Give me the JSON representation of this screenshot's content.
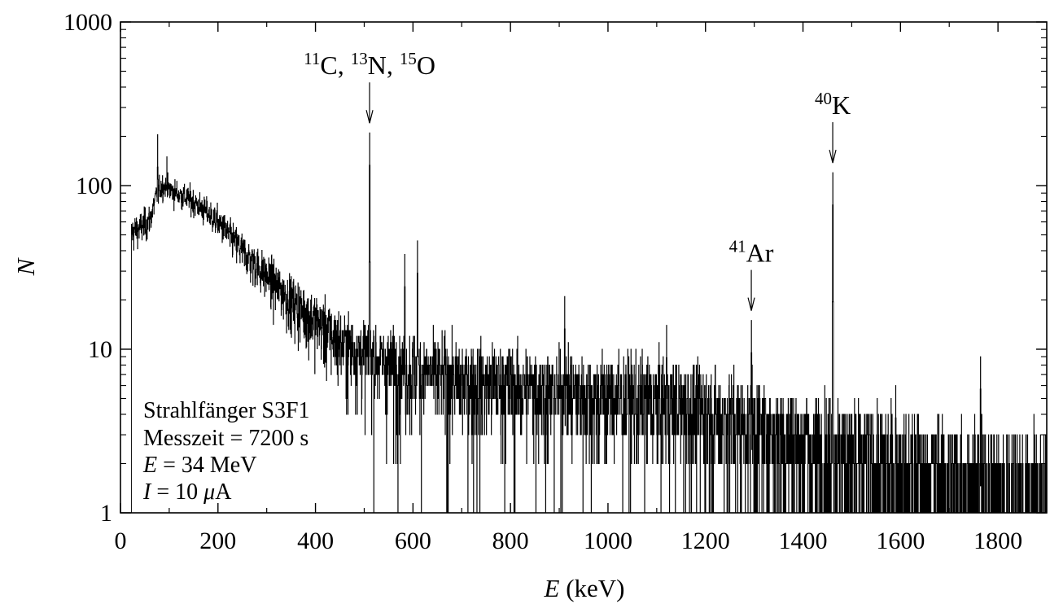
{
  "chart_data": {
    "type": "line",
    "xlabel_var": "E",
    "xlabel_unit": " (keV)",
    "ylabel": "N",
    "xlim": [
      0,
      1900
    ],
    "ylim": [
      1,
      1000
    ],
    "yscale": "log",
    "x_ticks": [
      "0",
      "200",
      "400",
      "600",
      "800",
      "1000",
      "1200",
      "1400",
      "1600",
      "1800"
    ],
    "y_ticks": [
      "1",
      "10",
      "100",
      "1000"
    ],
    "grid": false,
    "info_box": {
      "position": "bottom-left",
      "line1": "Strahlfänger S3F1",
      "line2": "Messzeit = 7200 s",
      "line3_var": "E",
      "line3_rest": " = 34 MeV",
      "line4_var": "I",
      "line4_rest": " = 10 ",
      "line4_mu": "μ",
      "line4_unit": "A"
    },
    "peak_annotations": [
      {
        "energy": 511,
        "parts": [
          {
            "sup": "11"
          },
          {
            "t": "C, "
          },
          {
            "sup": "13"
          },
          {
            "t": "N, "
          },
          {
            "sup": "15"
          },
          {
            "t": "O"
          }
        ]
      },
      {
        "energy": 1294,
        "parts": [
          {
            "sup": "41"
          },
          {
            "t": "Ar"
          }
        ]
      },
      {
        "energy": 1461,
        "parts": [
          {
            "sup": "40"
          },
          {
            "t": "K"
          }
        ]
      }
    ],
    "series": [
      {
        "trend": [
          [
            22,
            52
          ],
          [
            40,
            55
          ],
          [
            60,
            62
          ],
          [
            75,
            90
          ],
          [
            85,
            100
          ],
          [
            100,
            95
          ],
          [
            150,
            80
          ],
          [
            200,
            60
          ],
          [
            250,
            40
          ],
          [
            300,
            28
          ],
          [
            350,
            20
          ],
          [
            400,
            15
          ],
          [
            450,
            11
          ],
          [
            500,
            9.5
          ],
          [
            550,
            8
          ],
          [
            600,
            7.5
          ],
          [
            700,
            6.5
          ],
          [
            800,
            6
          ],
          [
            900,
            5.6
          ],
          [
            1000,
            5.2
          ],
          [
            1100,
            4.8
          ],
          [
            1200,
            4.2
          ],
          [
            1300,
            3.3
          ],
          [
            1400,
            2.6
          ],
          [
            1500,
            2.1
          ],
          [
            1600,
            1.8
          ],
          [
            1700,
            1.5
          ],
          [
            1800,
            1.3
          ],
          [
            1900,
            1.2
          ]
        ],
        "peaks": [
          {
            "x": 22,
            "y": 80
          },
          {
            "x": 76,
            "y": 205
          },
          {
            "x": 95,
            "y": 150
          },
          {
            "x": 511,
            "y": 210
          },
          {
            "x": 583,
            "y": 38
          },
          {
            "x": 609,
            "y": 46
          },
          {
            "x": 911,
            "y": 21
          },
          {
            "x": 1120,
            "y": 14
          },
          {
            "x": 1294,
            "y": 15
          },
          {
            "x": 1461,
            "y": 120
          },
          {
            "x": 1590,
            "y": 6
          },
          {
            "x": 1764,
            "y": 9
          }
        ],
        "dropouts": [
          22,
          671,
          731,
          1450
        ]
      }
    ]
  }
}
